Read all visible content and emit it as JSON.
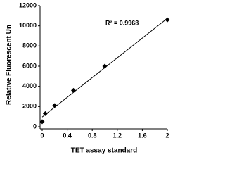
{
  "chart_data": {
    "type": "scatter",
    "x_label": "TET assay standard",
    "y_label": "Relative Fluorescent Un",
    "annotation": "R² = 0.9968",
    "x": [
      0,
      0.05,
      0.2,
      0.5,
      1.0,
      2.0
    ],
    "values": [
      500,
      1300,
      2100,
      3600,
      6000,
      10600
    ],
    "color": "#000000",
    "trendline": true,
    "xlim": [
      0,
      2
    ],
    "xticks": [
      0,
      0.4,
      0.8,
      1.2,
      1.6,
      2
    ],
    "ylim": [
      0,
      12000
    ],
    "yticks": [
      0,
      2000,
      4000,
      6000,
      8000,
      10000,
      12000
    ]
  }
}
